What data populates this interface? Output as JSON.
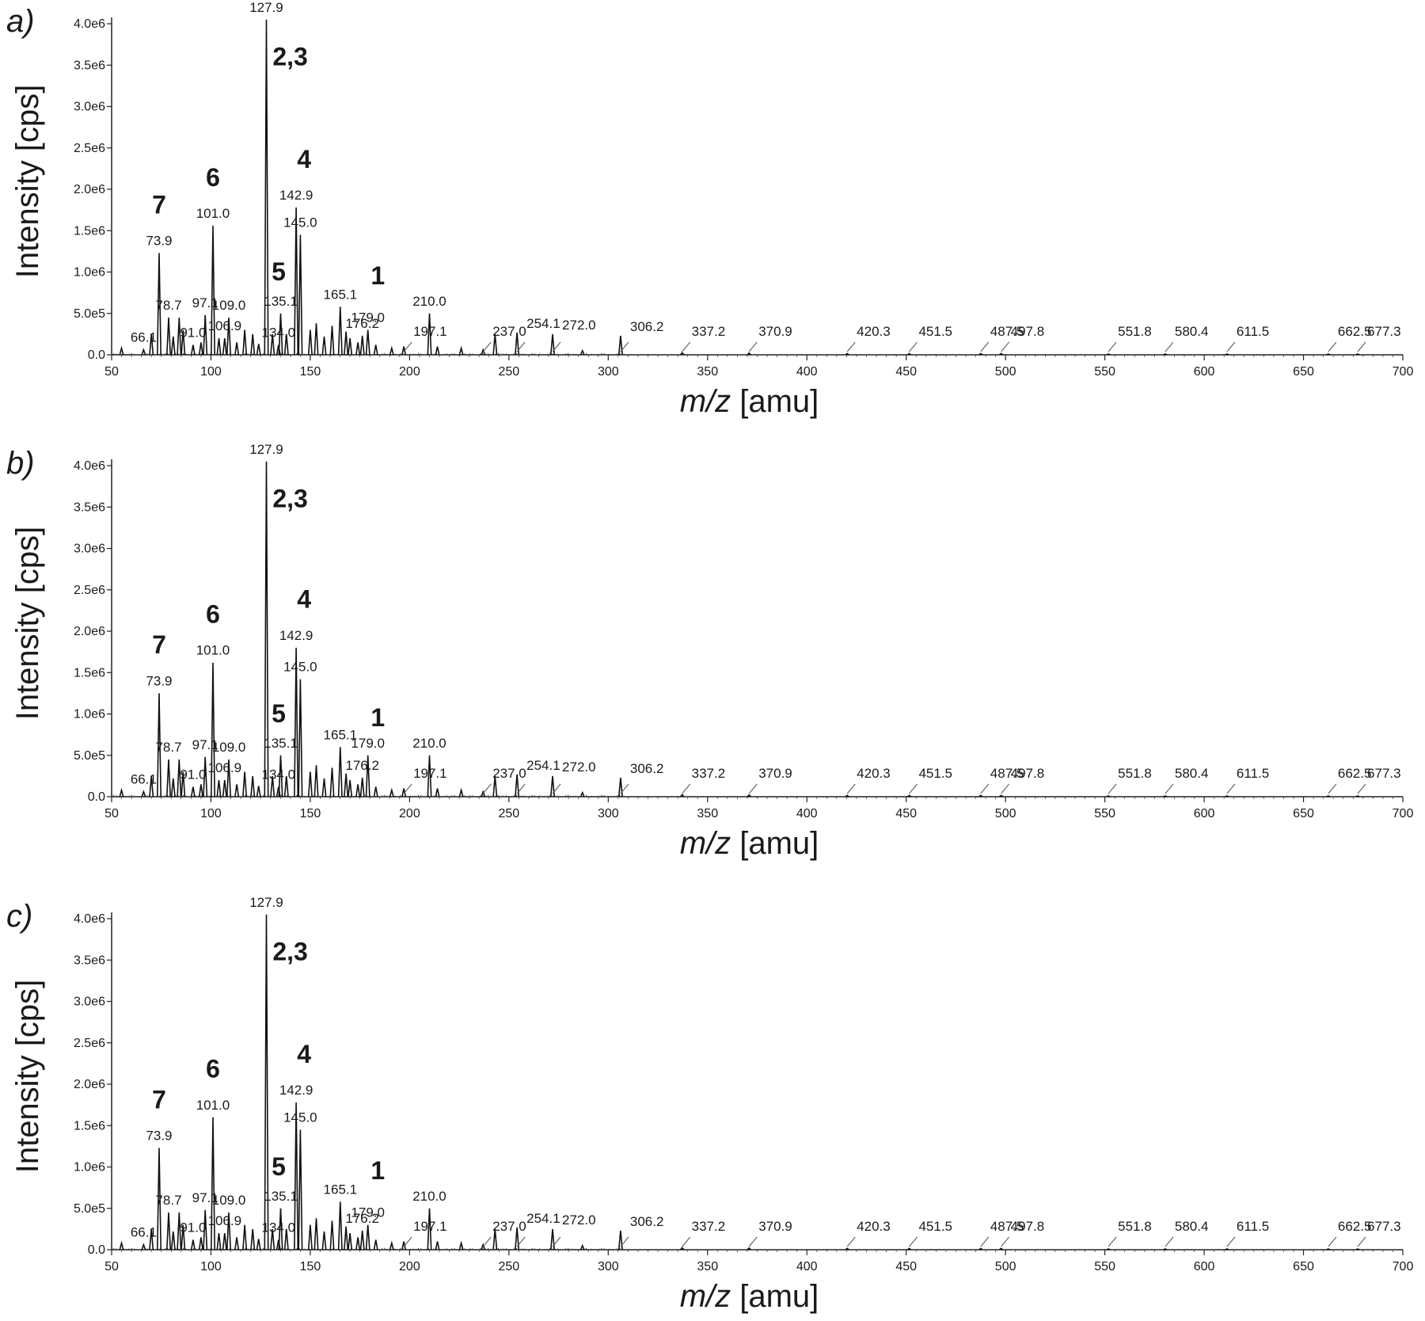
{
  "chart_data": [
    {
      "type": "line",
      "panel": "a",
      "xlabel": "m/z [amu]",
      "ylabel": "Intensity [cps]",
      "xlim": [
        50,
        700
      ],
      "ylim": [
        0,
        4000000
      ],
      "xticks": [
        50,
        100,
        150,
        200,
        250,
        300,
        350,
        400,
        450,
        500,
        550,
        600,
        650,
        700
      ],
      "yticks": [
        {
          "value": 0,
          "label": "0.0"
        },
        {
          "value": 500000,
          "label": "5.0e5"
        },
        {
          "value": 1000000,
          "label": "1.0e6"
        },
        {
          "value": 1500000,
          "label": "1.5e6"
        },
        {
          "value": 2000000,
          "label": "2.0e6"
        },
        {
          "value": 2500000,
          "label": "2.5e6"
        },
        {
          "value": 3000000,
          "label": "3.0e6"
        },
        {
          "value": 3500000,
          "label": "3.5e6"
        },
        {
          "value": 4000000,
          "label": "4.0e6"
        }
      ],
      "peaks": [
        {
          "x": 55.0,
          "y": 80000
        },
        {
          "x": 66.1,
          "y": 60000,
          "label": "66.1"
        },
        {
          "x": 70.0,
          "y": 250000
        },
        {
          "x": 73.9,
          "y": 1230000,
          "label": "73.9"
        },
        {
          "x": 78.7,
          "y": 450000,
          "label": "78.7"
        },
        {
          "x": 81.0,
          "y": 220000
        },
        {
          "x": 84.0,
          "y": 450000
        },
        {
          "x": 86.0,
          "y": 300000
        },
        {
          "x": 91.0,
          "y": 120000,
          "label": "91.0"
        },
        {
          "x": 95.0,
          "y": 150000
        },
        {
          "x": 97.1,
          "y": 480000,
          "label": "97.1"
        },
        {
          "x": 101.0,
          "y": 1560000,
          "label": "101.0"
        },
        {
          "x": 104.0,
          "y": 200000
        },
        {
          "x": 106.9,
          "y": 200000,
          "label": "106.9"
        },
        {
          "x": 109.0,
          "y": 450000,
          "label": "109.0"
        },
        {
          "x": 113.0,
          "y": 150000
        },
        {
          "x": 117.0,
          "y": 300000
        },
        {
          "x": 121.0,
          "y": 250000
        },
        {
          "x": 124.0,
          "y": 130000
        },
        {
          "x": 127.9,
          "y": 4050000,
          "label": "127.9"
        },
        {
          "x": 131.0,
          "y": 250000
        },
        {
          "x": 134.0,
          "y": 120000,
          "label": "134.0"
        },
        {
          "x": 135.1,
          "y": 500000,
          "label": "135.1"
        },
        {
          "x": 138.0,
          "y": 250000
        },
        {
          "x": 142.9,
          "y": 1780000,
          "label": "142.9"
        },
        {
          "x": 145.0,
          "y": 1450000,
          "label": "145.0"
        },
        {
          "x": 150.0,
          "y": 300000
        },
        {
          "x": 153.0,
          "y": 380000
        },
        {
          "x": 157.0,
          "y": 220000
        },
        {
          "x": 161.0,
          "y": 350000
        },
        {
          "x": 165.1,
          "y": 580000,
          "label": "165.1"
        },
        {
          "x": 168.0,
          "y": 280000
        },
        {
          "x": 170.0,
          "y": 200000
        },
        {
          "x": 174.0,
          "y": 150000
        },
        {
          "x": 176.2,
          "y": 230000,
          "label": "176.2"
        },
        {
          "x": 179.0,
          "y": 300000,
          "label": "179.0"
        },
        {
          "x": 183.0,
          "y": 120000
        },
        {
          "x": 191.0,
          "y": 80000
        },
        {
          "x": 197.1,
          "y": 100000,
          "label": "197.1"
        },
        {
          "x": 210.0,
          "y": 500000,
          "label": "210.0"
        },
        {
          "x": 214.0,
          "y": 100000
        },
        {
          "x": 226.0,
          "y": 80000
        },
        {
          "x": 237.0,
          "y": 60000,
          "label": "237.0"
        },
        {
          "x": 243.0,
          "y": 250000
        },
        {
          "x": 254.1,
          "y": 270000,
          "label": "254.1"
        },
        {
          "x": 272.0,
          "y": 250000,
          "label": "272.0"
        },
        {
          "x": 287.0,
          "y": 50000
        },
        {
          "x": 306.2,
          "y": 230000,
          "label": "306.2"
        },
        {
          "x": 337.2,
          "y": 25000,
          "label": "337.2"
        },
        {
          "x": 370.9,
          "y": 20000,
          "label": "370.9"
        },
        {
          "x": 420.3,
          "y": 15000,
          "label": "420.3"
        },
        {
          "x": 451.5,
          "y": 15000,
          "label": "451.5"
        },
        {
          "x": 487.5,
          "y": 15000,
          "label": "487.5"
        },
        {
          "x": 497.8,
          "y": 15000,
          "label": "497.8"
        },
        {
          "x": 551.8,
          "y": 10000,
          "label": "551.8"
        },
        {
          "x": 580.4,
          "y": 10000,
          "label": "580.4"
        },
        {
          "x": 611.5,
          "y": 10000,
          "label": "611.5"
        },
        {
          "x": 662.5,
          "y": 10000,
          "label": "662.5"
        },
        {
          "x": 677.3,
          "y": 10000,
          "label": "677.3"
        }
      ],
      "annotations": [
        {
          "text": "7",
          "x": 73.9
        },
        {
          "text": "6",
          "x": 101.0
        },
        {
          "text": "2,3",
          "x": 127.9
        },
        {
          "text": "4",
          "x": 142.9
        },
        {
          "text": "5",
          "x": 135.1
        },
        {
          "text": "1",
          "x": 179.0
        }
      ]
    },
    {
      "type": "line",
      "panel": "b",
      "xlabel": "m/z [amu]",
      "ylabel": "Intensity [cps]",
      "xlim": [
        50,
        700
      ],
      "ylim": [
        0,
        4000000
      ],
      "xticks": [
        50,
        100,
        150,
        200,
        250,
        300,
        350,
        400,
        450,
        500,
        550,
        600,
        650,
        700
      ],
      "yticks": [
        {
          "value": 0,
          "label": "0.0"
        },
        {
          "value": 500000,
          "label": "5.0e5"
        },
        {
          "value": 1000000,
          "label": "1.0e6"
        },
        {
          "value": 1500000,
          "label": "1.5e6"
        },
        {
          "value": 2000000,
          "label": "2.0e6"
        },
        {
          "value": 2500000,
          "label": "2.5e6"
        },
        {
          "value": 3000000,
          "label": "3.0e6"
        },
        {
          "value": 3500000,
          "label": "3.5e6"
        },
        {
          "value": 4000000,
          "label": "4.0e6"
        }
      ],
      "peaks": [
        {
          "x": 55.0,
          "y": 80000
        },
        {
          "x": 66.1,
          "y": 60000,
          "label": "66.1"
        },
        {
          "x": 70.0,
          "y": 250000
        },
        {
          "x": 73.9,
          "y": 1250000,
          "label": "73.9"
        },
        {
          "x": 78.7,
          "y": 450000,
          "label": "78.7"
        },
        {
          "x": 81.0,
          "y": 220000
        },
        {
          "x": 84.0,
          "y": 450000
        },
        {
          "x": 86.0,
          "y": 300000
        },
        {
          "x": 91.0,
          "y": 120000,
          "label": "91.0"
        },
        {
          "x": 95.0,
          "y": 150000
        },
        {
          "x": 97.1,
          "y": 480000,
          "label": "97.1"
        },
        {
          "x": 101.0,
          "y": 1620000,
          "label": "101.0"
        },
        {
          "x": 104.0,
          "y": 200000
        },
        {
          "x": 106.9,
          "y": 200000,
          "label": "106.9"
        },
        {
          "x": 109.0,
          "y": 450000,
          "label": "109.0"
        },
        {
          "x": 113.0,
          "y": 150000
        },
        {
          "x": 117.0,
          "y": 300000
        },
        {
          "x": 121.0,
          "y": 250000
        },
        {
          "x": 124.0,
          "y": 130000
        },
        {
          "x": 127.9,
          "y": 4050000,
          "label": "127.9"
        },
        {
          "x": 131.0,
          "y": 250000
        },
        {
          "x": 134.0,
          "y": 120000,
          "label": "134.0"
        },
        {
          "x": 135.1,
          "y": 500000,
          "label": "135.1"
        },
        {
          "x": 138.0,
          "y": 250000
        },
        {
          "x": 142.9,
          "y": 1800000,
          "label": "142.9"
        },
        {
          "x": 145.0,
          "y": 1420000,
          "label": "145.0"
        },
        {
          "x": 150.0,
          "y": 300000
        },
        {
          "x": 153.0,
          "y": 380000
        },
        {
          "x": 157.0,
          "y": 220000
        },
        {
          "x": 161.0,
          "y": 350000
        },
        {
          "x": 165.1,
          "y": 600000,
          "label": "165.1"
        },
        {
          "x": 168.0,
          "y": 280000
        },
        {
          "x": 170.0,
          "y": 200000
        },
        {
          "x": 174.0,
          "y": 150000
        },
        {
          "x": 176.2,
          "y": 230000,
          "label": "176.2"
        },
        {
          "x": 179.0,
          "y": 500000,
          "label": "179.0"
        },
        {
          "x": 183.0,
          "y": 120000
        },
        {
          "x": 191.0,
          "y": 80000
        },
        {
          "x": 197.1,
          "y": 100000,
          "label": "197.1"
        },
        {
          "x": 210.0,
          "y": 500000,
          "label": "210.0"
        },
        {
          "x": 214.0,
          "y": 100000
        },
        {
          "x": 226.0,
          "y": 80000
        },
        {
          "x": 237.0,
          "y": 60000,
          "label": "237.0"
        },
        {
          "x": 243.0,
          "y": 250000
        },
        {
          "x": 254.1,
          "y": 270000,
          "label": "254.1"
        },
        {
          "x": 272.0,
          "y": 250000,
          "label": "272.0"
        },
        {
          "x": 287.0,
          "y": 50000
        },
        {
          "x": 306.2,
          "y": 230000,
          "label": "306.2"
        },
        {
          "x": 337.2,
          "y": 25000,
          "label": "337.2"
        },
        {
          "x": 370.9,
          "y": 20000,
          "label": "370.9"
        },
        {
          "x": 420.3,
          "y": 15000,
          "label": "420.3"
        },
        {
          "x": 451.5,
          "y": 15000,
          "label": "451.5"
        },
        {
          "x": 487.5,
          "y": 15000,
          "label": "487.5"
        },
        {
          "x": 497.8,
          "y": 15000,
          "label": "497.8"
        },
        {
          "x": 551.8,
          "y": 10000,
          "label": "551.8"
        },
        {
          "x": 580.4,
          "y": 10000,
          "label": "580.4"
        },
        {
          "x": 611.5,
          "y": 10000,
          "label": "611.5"
        },
        {
          "x": 662.5,
          "y": 10000,
          "label": "662.5"
        },
        {
          "x": 677.3,
          "y": 10000,
          "label": "677.3"
        }
      ],
      "annotations": [
        {
          "text": "7",
          "x": 73.9
        },
        {
          "text": "6",
          "x": 101.0
        },
        {
          "text": "2,3",
          "x": 127.9
        },
        {
          "text": "4",
          "x": 142.9
        },
        {
          "text": "5",
          "x": 135.1
        },
        {
          "text": "1",
          "x": 179.0
        }
      ]
    },
    {
      "type": "line",
      "panel": "c",
      "xlabel": "m/z [amu]",
      "ylabel": "Intensity [cps]",
      "xlim": [
        50,
        700
      ],
      "ylim": [
        0,
        4000000
      ],
      "xticks": [
        50,
        100,
        150,
        200,
        250,
        300,
        350,
        400,
        450,
        500,
        550,
        600,
        650,
        700
      ],
      "yticks": [
        {
          "value": 0,
          "label": "0.0"
        },
        {
          "value": 500000,
          "label": "5.0e5"
        },
        {
          "value": 1000000,
          "label": "1.0e6"
        },
        {
          "value": 1500000,
          "label": "1.5e6"
        },
        {
          "value": 2000000,
          "label": "2.0e6"
        },
        {
          "value": 2500000,
          "label": "2.5e6"
        },
        {
          "value": 3000000,
          "label": "3.0e6"
        },
        {
          "value": 3500000,
          "label": "3.5e6"
        },
        {
          "value": 4000000,
          "label": "4.0e6"
        }
      ],
      "peaks": [
        {
          "x": 55.0,
          "y": 80000
        },
        {
          "x": 66.1,
          "y": 60000,
          "label": "66.1"
        },
        {
          "x": 70.0,
          "y": 250000
        },
        {
          "x": 73.9,
          "y": 1230000,
          "label": "73.9"
        },
        {
          "x": 78.7,
          "y": 450000,
          "label": "78.7"
        },
        {
          "x": 81.0,
          "y": 220000
        },
        {
          "x": 84.0,
          "y": 450000
        },
        {
          "x": 86.0,
          "y": 300000
        },
        {
          "x": 91.0,
          "y": 120000,
          "label": "91.0"
        },
        {
          "x": 95.0,
          "y": 150000
        },
        {
          "x": 97.1,
          "y": 480000,
          "label": "97.1"
        },
        {
          "x": 101.0,
          "y": 1600000,
          "label": "101.0"
        },
        {
          "x": 104.0,
          "y": 200000
        },
        {
          "x": 106.9,
          "y": 200000,
          "label": "106.9"
        },
        {
          "x": 109.0,
          "y": 450000,
          "label": "109.0"
        },
        {
          "x": 113.0,
          "y": 150000
        },
        {
          "x": 117.0,
          "y": 300000
        },
        {
          "x": 121.0,
          "y": 250000
        },
        {
          "x": 124.0,
          "y": 130000
        },
        {
          "x": 127.9,
          "y": 4050000,
          "label": "127.9"
        },
        {
          "x": 131.0,
          "y": 250000
        },
        {
          "x": 134.0,
          "y": 120000,
          "label": "134.0"
        },
        {
          "x": 135.1,
          "y": 500000,
          "label": "135.1"
        },
        {
          "x": 138.0,
          "y": 250000
        },
        {
          "x": 142.9,
          "y": 1780000,
          "label": "142.9"
        },
        {
          "x": 145.0,
          "y": 1450000,
          "label": "145.0"
        },
        {
          "x": 150.0,
          "y": 300000
        },
        {
          "x": 153.0,
          "y": 380000
        },
        {
          "x": 157.0,
          "y": 220000
        },
        {
          "x": 161.0,
          "y": 350000
        },
        {
          "x": 165.1,
          "y": 580000,
          "label": "165.1"
        },
        {
          "x": 168.0,
          "y": 280000
        },
        {
          "x": 170.0,
          "y": 200000
        },
        {
          "x": 174.0,
          "y": 150000
        },
        {
          "x": 176.2,
          "y": 230000,
          "label": "176.2"
        },
        {
          "x": 179.0,
          "y": 300000,
          "label": "179.0"
        },
        {
          "x": 183.0,
          "y": 120000
        },
        {
          "x": 191.0,
          "y": 80000
        },
        {
          "x": 197.1,
          "y": 100000,
          "label": "197.1"
        },
        {
          "x": 210.0,
          "y": 500000,
          "label": "210.0"
        },
        {
          "x": 214.0,
          "y": 100000
        },
        {
          "x": 226.0,
          "y": 80000
        },
        {
          "x": 237.0,
          "y": 60000,
          "label": "237.0"
        },
        {
          "x": 243.0,
          "y": 250000
        },
        {
          "x": 254.1,
          "y": 270000,
          "label": "254.1"
        },
        {
          "x": 272.0,
          "y": 250000,
          "label": "272.0"
        },
        {
          "x": 287.0,
          "y": 50000
        },
        {
          "x": 306.2,
          "y": 230000,
          "label": "306.2"
        },
        {
          "x": 337.2,
          "y": 25000,
          "label": "337.2"
        },
        {
          "x": 370.9,
          "y": 20000,
          "label": "370.9"
        },
        {
          "x": 420.3,
          "y": 15000,
          "label": "420.3"
        },
        {
          "x": 451.5,
          "y": 15000,
          "label": "451.5"
        },
        {
          "x": 487.5,
          "y": 15000,
          "label": "487.5"
        },
        {
          "x": 497.8,
          "y": 15000,
          "label": "497.8"
        },
        {
          "x": 551.8,
          "y": 10000,
          "label": "551.8"
        },
        {
          "x": 580.4,
          "y": 10000,
          "label": "580.4"
        },
        {
          "x": 611.5,
          "y": 10000,
          "label": "611.5"
        },
        {
          "x": 662.5,
          "y": 10000,
          "label": "662.5"
        },
        {
          "x": 677.3,
          "y": 10000,
          "label": "677.3"
        }
      ],
      "annotations": [
        {
          "text": "7",
          "x": 73.9
        },
        {
          "text": "6",
          "x": 101.0
        },
        {
          "text": "2,3",
          "x": 127.9
        },
        {
          "text": "4",
          "x": 142.9
        },
        {
          "text": "5",
          "x": 135.1
        },
        {
          "text": "1",
          "x": 179.0
        }
      ]
    }
  ]
}
